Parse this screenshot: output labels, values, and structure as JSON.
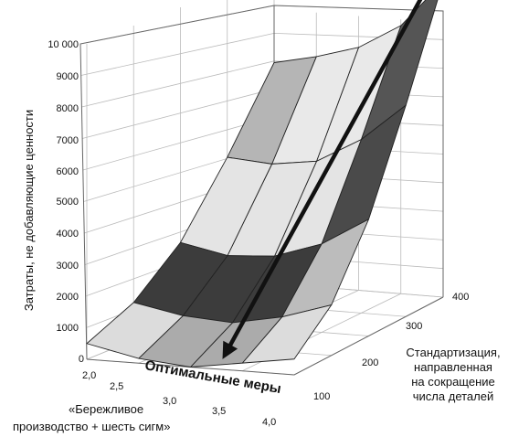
{
  "chart_data": {
    "type": "surface-3d",
    "zlabel": "Затраты, не добавляющие ценности",
    "xlabel_lines": [
      "«Бережливое",
      "производство + шесть сигм»"
    ],
    "ylabel_lines": [
      "Стандартизация,",
      "направленная",
      "на сокращение",
      "числа деталей"
    ],
    "x_ticks": [
      "2,0",
      "2,5",
      "3,0",
      "3,5",
      "4,0"
    ],
    "y_ticks": [
      "100",
      "200",
      "300",
      "400"
    ],
    "z_ticks": [
      "0",
      "1000",
      "2000",
      "3000",
      "4000",
      "5000",
      "6000",
      "7000",
      "8000",
      "9000",
      "10 000"
    ],
    "z_range": [
      0,
      10000
    ],
    "surface_levels": [
      [
        500,
        150,
        0,
        250,
        500
      ],
      [
        1200,
        900,
        800,
        1100,
        1600
      ],
      [
        2500,
        2200,
        2300,
        2800,
        3700
      ],
      [
        4600,
        4500,
        4700,
        5500,
        6700
      ],
      [
        7000,
        7300,
        7700,
        8500,
        10000
      ]
    ],
    "band_colors": [
      "#ababab",
      "#dcdcdc",
      "#3c3c3c",
      "#bcbcbc",
      "#5a5a5a",
      "#e4e4e4",
      "#cdcdcd",
      "#4a4a4a",
      "#b5b5b5",
      "#e9e9e9",
      "#bdbdbd",
      "#555555",
      "#cccccc",
      "#e8e8e8",
      "#777777"
    ],
    "annotation": "Оптимальные меры"
  }
}
